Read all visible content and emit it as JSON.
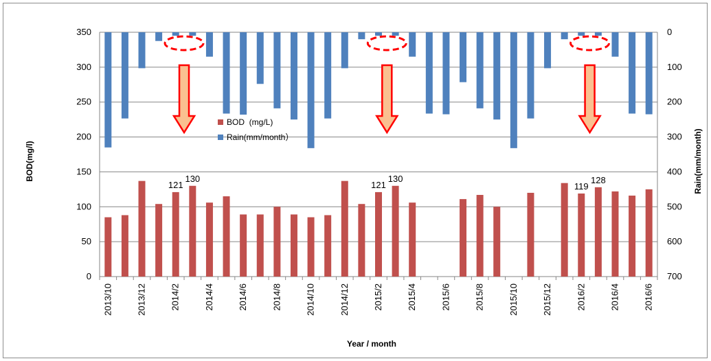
{
  "chart_data": {
    "type": "bar",
    "x": [
      "2013/10",
      "2013/11",
      "2013/12",
      "2014/1",
      "2014/2",
      "2014/3",
      "2014/4",
      "2014/5",
      "2014/6",
      "2014/7",
      "2014/8",
      "2014/9",
      "2014/10",
      "2014/11",
      "2014/12",
      "2015/1",
      "2015/2",
      "2015/3",
      "2015/4",
      "2015/5",
      "2015/6",
      "2015/7",
      "2015/8",
      "2015/9",
      "2015/10",
      "2015/11",
      "2015/12",
      "2016/1",
      "2016/2",
      "2016/3",
      "2016/4",
      "2016/5",
      "2016/6"
    ],
    "x_tick_labels": [
      "2013/10",
      "2013/12",
      "2014/2",
      "2014/4",
      "2014/6",
      "2014/8",
      "2014/10",
      "2014/12",
      "2015/2",
      "2015/4",
      "2015/6",
      "2015/8",
      "2015/10",
      "2015/12",
      "2016/2",
      "2016/4",
      "2016/6"
    ],
    "xlabel": "Year / month",
    "series": [
      {
        "name": "BOD  (mg/L)",
        "axis": "left",
        "color": "#C0504D",
        "values": [
          85,
          88,
          137,
          104,
          121,
          130,
          106,
          115,
          89,
          89,
          100,
          89,
          85,
          88,
          137,
          104,
          121,
          130,
          106,
          null,
          null,
          111,
          117,
          100,
          null,
          120,
          null,
          134,
          119,
          128,
          122,
          116,
          125
        ]
      },
      {
        "name": "Rain(mm/month）",
        "axis": "right",
        "color": "#4F81BD",
        "values": [
          330,
          247,
          103,
          25,
          10,
          10,
          70,
          233,
          236,
          148,
          218,
          250,
          332,
          247,
          103,
          20,
          10,
          10,
          70,
          233,
          235,
          143,
          218,
          250,
          332,
          247,
          103,
          20,
          10,
          10,
          70,
          233,
          235
        ]
      }
    ],
    "left_axis": {
      "label": "BOD(mg/l)",
      "ylim": [
        0,
        350
      ],
      "ticks": [
        "0",
        "50",
        "100",
        "150",
        "200",
        "250",
        "300",
        "350"
      ]
    },
    "right_axis": {
      "label": "Rain(mm/month)",
      "ylim": [
        0,
        700
      ],
      "inverted": true,
      "ticks": [
        "0",
        "100",
        "200",
        "300",
        "400",
        "500",
        "600",
        "700"
      ]
    },
    "data_labels": [
      {
        "index": 4,
        "text": "121"
      },
      {
        "index": 5,
        "text": "130"
      },
      {
        "index": 16,
        "text": "121"
      },
      {
        "index": 17,
        "text": "130"
      },
      {
        "index": 28,
        "text": "119"
      },
      {
        "index": 29,
        "text": "128"
      }
    ],
    "annotations": [
      {
        "type": "dashed-ellipse",
        "color": "#FF0000",
        "near_index": 4.5
      },
      {
        "type": "dashed-ellipse",
        "color": "#FF0000",
        "near_index": 16.5
      },
      {
        "type": "dashed-ellipse",
        "color": "#FF0000",
        "near_index": 28.5
      },
      {
        "type": "down-arrow",
        "fill": "#FAC090",
        "stroke": "#FF0000",
        "near_index": 4.5
      },
      {
        "type": "down-arrow",
        "fill": "#FAC090",
        "stroke": "#FF0000",
        "near_index": 16.5
      },
      {
        "type": "down-arrow",
        "fill": "#FAC090",
        "stroke": "#FF0000",
        "near_index": 28.5
      }
    ],
    "legend_position": "center-left",
    "grid": true
  }
}
